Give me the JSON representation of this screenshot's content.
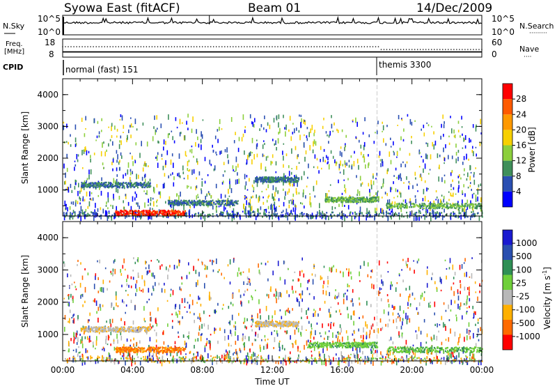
{
  "header": {
    "station": "Syowa East (fitACF)",
    "beam": "Beam 01",
    "date": "14/Dec/2009"
  },
  "noise_panel": {
    "left_label": "N.Sky",
    "right_label": "N.Search",
    "left_ticks": [
      "10^5",
      "10^0"
    ],
    "right_ticks": [
      "10^5",
      "10^0"
    ]
  },
  "freq_panel": {
    "left_label_line1": "Freq.",
    "left_label_line2": "[MHz]",
    "right_label": "Nave",
    "left_ticks": [
      "18",
      "8"
    ],
    "right_ticks": [
      "60",
      "0"
    ]
  },
  "cpid": {
    "label": "CPID",
    "modes": [
      {
        "name": "normal (fast) 151",
        "start_hour": 0
      },
      {
        "name": "themis 3300",
        "start_hour": 18
      }
    ]
  },
  "colors": {
    "power_scale": [
      "#0000ff",
      "#2a4fb2",
      "#3f8f5a",
      "#8ccf3c",
      "#f7d000",
      "#ff9900",
      "#ff5a00",
      "#ff0000"
    ],
    "velocity_scale": [
      "#ff0000",
      "#ff6a00",
      "#ffb000",
      "#b8b8b8",
      "#6fcf3a",
      "#2f8f55",
      "#2a4faf",
      "#1a1ad0"
    ]
  },
  "chart_data": [
    {
      "type": "heatmap",
      "ylabel": "Slant Range [km]",
      "colorbar_label": "Power [dB]",
      "colorbar_ticks": [
        "28",
        "24",
        "20",
        "16",
        "12",
        "8",
        "4"
      ],
      "colorbar_range": [
        0,
        32
      ],
      "xlim_hours": [
        0,
        24
      ],
      "ylim_km": [
        180,
        4500
      ],
      "yticks": [
        "1000",
        "2000",
        "3000",
        "4000"
      ],
      "echo_bands": [
        {
          "x_start": 0.1,
          "x_end": 24,
          "range_km": 250,
          "value_db": 10
        },
        {
          "x_start": 1.0,
          "x_end": 5.0,
          "range_km": 1180,
          "value_db": 8
        },
        {
          "x_start": 6.0,
          "x_end": 10.0,
          "range_km": 620,
          "value_db": 10
        },
        {
          "x_start": 11.0,
          "x_end": 13.5,
          "range_km": 1350,
          "value_db": 9
        },
        {
          "x_start": 15.0,
          "x_end": 18.0,
          "range_km": 720,
          "value_db": 12
        },
        {
          "x_start": 18.5,
          "x_end": 24.0,
          "range_km": 520,
          "value_db": 14
        },
        {
          "x_start": 3.0,
          "x_end": 7.0,
          "range_km": 300,
          "value_db": 30
        }
      ]
    },
    {
      "type": "heatmap",
      "ylabel": "Slant Range [km]",
      "colorbar_label": "Velocity [m s^-1]",
      "colorbar_ticks": [
        "1000",
        "500",
        "100",
        "25",
        "-25",
        "-100",
        "-500",
        "-1000"
      ],
      "colorbar_range": [
        -1000,
        1000
      ],
      "xlim_hours": [
        0,
        24
      ],
      "ylim_km": [
        180,
        4500
      ],
      "yticks": [
        "1000",
        "2000",
        "3000",
        "4000"
      ],
      "xticks": [
        "00:00",
        "04:00",
        "08:00",
        "12:00",
        "16:00",
        "20:00",
        "00:00"
      ],
      "xlabel": "Time UT",
      "echo_bands": [
        {
          "x_start": 0.1,
          "x_end": 24,
          "range_km": 250,
          "value": -60
        },
        {
          "x_start": 1.0,
          "x_end": 5.0,
          "range_km": 1180,
          "value": 0
        },
        {
          "x_start": 3.0,
          "x_end": 7.0,
          "range_km": 550,
          "value": -150
        },
        {
          "x_start": 11.0,
          "x_end": 13.5,
          "range_km": 1350,
          "value": 0
        },
        {
          "x_start": 14.0,
          "x_end": 18.0,
          "range_km": 700,
          "value": 80
        },
        {
          "x_start": 18.5,
          "x_end": 24.0,
          "range_km": 550,
          "value": 80
        }
      ]
    }
  ]
}
